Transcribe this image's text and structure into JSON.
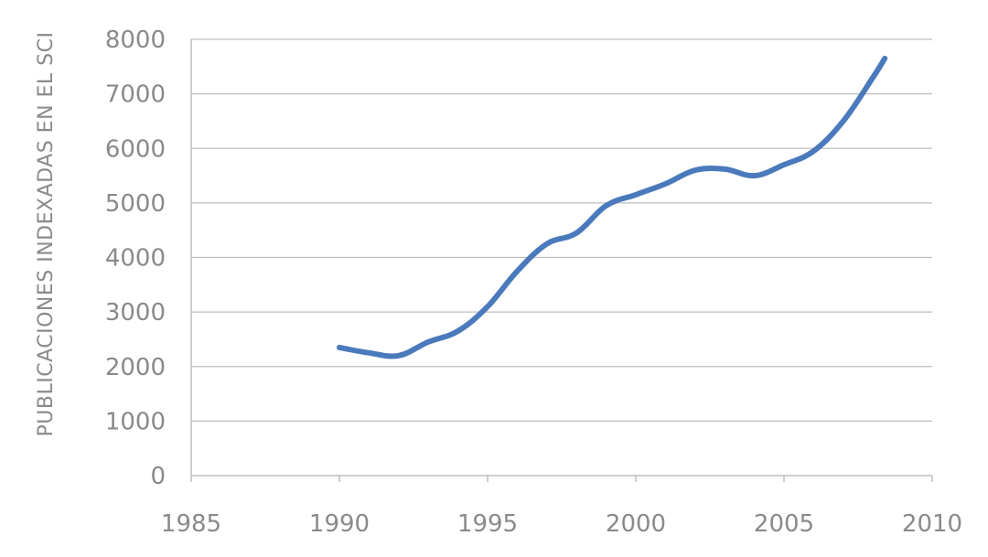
{
  "chart_data": {
    "type": "line",
    "title": "",
    "xlabel": "",
    "ylabel": "PUBLICACIONES INDEXADAS EN EL SCI",
    "xlim": [
      1985,
      2010
    ],
    "ylim": [
      0,
      8000
    ],
    "x_ticks": [
      "1985",
      "1990",
      "1995",
      "2000",
      "2005",
      "2010"
    ],
    "y_ticks": [
      "0",
      "1000",
      "2000",
      "3000",
      "4000",
      "5000",
      "6000",
      "7000",
      "8000"
    ],
    "grid": true,
    "series": [
      {
        "color": "#4a7abc",
        "x": [
          1990,
          1991,
          1992,
          1993,
          1994,
          1995,
          1996,
          1997,
          1998,
          1999,
          2000,
          2001,
          2002,
          2003,
          2004,
          2005,
          2006,
          2007,
          2008,
          2008.4
        ],
        "y": [
          2350,
          2250,
          2200,
          2450,
          2650,
          3100,
          3750,
          4250,
          4450,
          4950,
          5150,
          5350,
          5600,
          5620,
          5500,
          5700,
          5950,
          6500,
          7300,
          7650
        ]
      }
    ]
  }
}
